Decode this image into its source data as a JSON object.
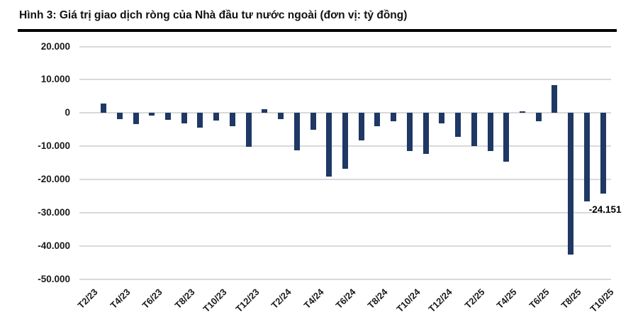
{
  "figure": {
    "title": "Hình 3: Giá trị giao dịch ròng của Nhà đầu tư nước ngoài (đơn vị: tỷ đồng)"
  },
  "chart_data": {
    "type": "bar",
    "title": "Giá trị giao dịch ròng của Nhà đầu tư nước ngoài",
    "unit": "tỷ đồng",
    "categories": [
      "T2/23",
      "T3/23",
      "T4/23",
      "T5/23",
      "T6/23",
      "T7/23",
      "T8/23",
      "T9/23",
      "T10/23",
      "T11/23",
      "T12/23",
      "T1/24",
      "T2/24",
      "T3/24",
      "T4/24",
      "T5/24",
      "T6/24",
      "T7/24",
      "T8/24",
      "T9/24",
      "T10/24",
      "T11/24",
      "T12/24",
      "T1/25",
      "T2/25",
      "T3/25",
      "T4/25",
      "T5/25",
      "T6/25",
      "T7/25",
      "T8/25",
      "T9/25",
      "T10/25"
    ],
    "values": [
      0,
      2800,
      -1800,
      -3300,
      -750,
      -2100,
      -3200,
      -4400,
      -2300,
      -3900,
      -10200,
      1050,
      -1750,
      -11200,
      -5100,
      -19150,
      -16850,
      -8300,
      -4050,
      -2450,
      -11400,
      -12200,
      -3100,
      -7200,
      -10000,
      -11500,
      -14700,
      400,
      -2400,
      8300,
      -42600,
      -26600,
      -24151
    ],
    "x_tick_labels": [
      "T2/23",
      "T4/23",
      "T6/23",
      "T8/23",
      "T10/23",
      "T12/23",
      "T2/24",
      "T4/24",
      "T6/24",
      "T8/24",
      "T10/24",
      "T12/24",
      "T2/25",
      "T4/25",
      "T6/25",
      "T8/25",
      "T10/25"
    ],
    "x_tick_step": 2,
    "y_tick_labels": [
      "20.000",
      "10.000",
      "0",
      "-10.000",
      "-20.000",
      "-30.000",
      "-40.000",
      "-50.000"
    ],
    "ylim": [
      -50000,
      20000
    ],
    "y_step": 10000,
    "grid": true,
    "legend": false,
    "annotation": {
      "text": "-24.151",
      "category": "T10/25",
      "value": -24151
    },
    "colors": {
      "bar": "#1F3864",
      "gridline": "#D9D9D9",
      "text": "#000000",
      "title_rule": "#000000"
    }
  }
}
